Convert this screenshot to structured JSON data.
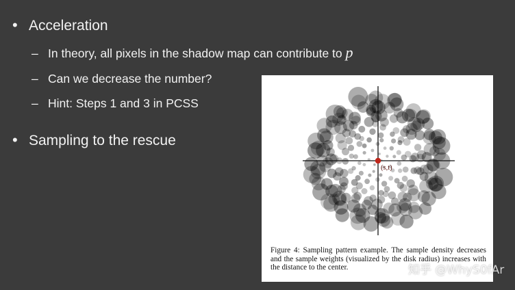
{
  "bullets": [
    {
      "text": "Acceleration",
      "subitems": [
        {
          "text": "In theory, all pixels in the shadow map can contribute to ",
          "math": "p"
        },
        {
          "text": "Can we decrease the number?"
        },
        {
          "text": "Hint: Steps 1 and 3 in PCSS"
        }
      ]
    },
    {
      "text": "Sampling to the rescue"
    }
  ],
  "symbols": {
    "bullet": "•",
    "dash": "–"
  },
  "figure": {
    "center_label": "(s,t)",
    "caption": "Figure 4: Sampling pattern example. The sample density decreases and the sample weights (visualized by the disk radius) increases with the distance to the center.",
    "colors": {
      "disk": "#000000",
      "axis": "#111111",
      "center": "#c0281c"
    }
  },
  "watermark": "知乎 @WhyS0fAr"
}
